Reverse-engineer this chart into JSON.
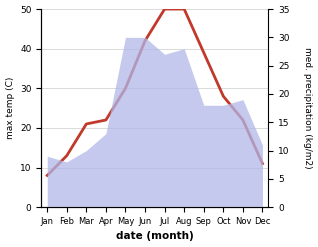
{
  "months": [
    "Jan",
    "Feb",
    "Mar",
    "Apr",
    "May",
    "Jun",
    "Jul",
    "Aug",
    "Sep",
    "Oct",
    "Nov",
    "Dec"
  ],
  "max_temp": [
    8,
    13,
    21,
    22,
    30,
    42,
    50,
    50,
    39,
    28,
    22,
    11
  ],
  "precipitation": [
    9,
    8,
    10,
    13,
    30,
    30,
    27,
    28,
    18,
    18,
    19,
    11
  ],
  "temp_color": "#c0392b",
  "precip_color_fill": "#b0b8e8",
  "title": "",
  "xlabel": "date (month)",
  "ylabel_left": "max temp (C)",
  "ylabel_right": "med. precipitation (kg/m2)",
  "ylim_left": [
    0,
    50
  ],
  "ylim_right": [
    0,
    35
  ],
  "yticks_left": [
    0,
    10,
    20,
    30,
    40,
    50
  ],
  "yticks_right": [
    0,
    5,
    10,
    15,
    20,
    25,
    30,
    35
  ],
  "background_color": "#ffffff"
}
